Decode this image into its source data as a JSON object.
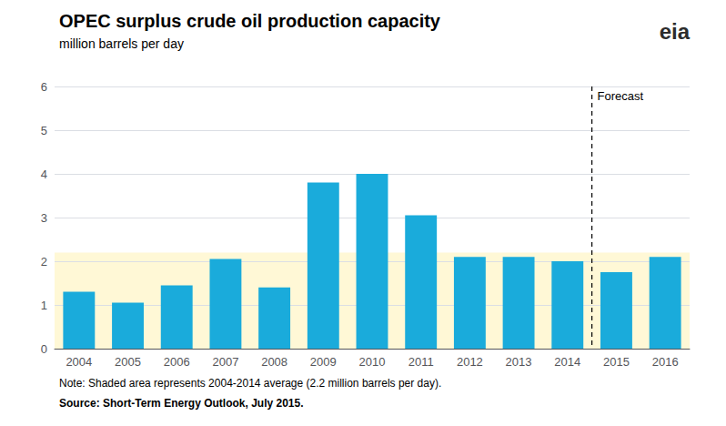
{
  "chart_data": {
    "type": "bar",
    "title": "OPEC surplus crude oil production capacity",
    "subtitle": "million barrels per day",
    "categories": [
      2004,
      2005,
      2006,
      2007,
      2008,
      2009,
      2010,
      2011,
      2012,
      2013,
      2014,
      2015,
      2016
    ],
    "values": [
      1.3,
      1.05,
      1.45,
      2.05,
      1.4,
      3.8,
      4.0,
      3.05,
      2.1,
      2.1,
      2.0,
      1.75,
      2.1
    ],
    "color": "#1AABDB",
    "ylim": [
      0,
      6
    ],
    "yticks": [
      0,
      1,
      2,
      3,
      4,
      5,
      6
    ],
    "grid": true,
    "average": 2.2,
    "shaded_color": "#FFF8D6",
    "forecast_start": 2015,
    "forecast_label": "Forecast",
    "note": "Note: Shaded area represents 2004-2014 average (2.2 million barrels per day).",
    "source": "Source: Short-Term Energy Outlook, July 2015.",
    "logo_text": "eia"
  }
}
